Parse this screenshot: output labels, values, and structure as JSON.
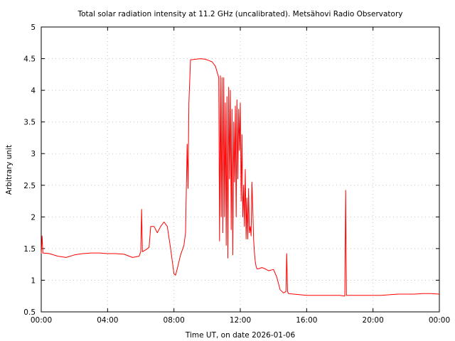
{
  "chart_data": {
    "type": "line",
    "title": "Total solar radiation intensity at 11.2 GHz (uncalibrated). Metsähovi Radio Observatory",
    "xlabel": "Time UT, on date 2026-01-06",
    "ylabel": "Arbitrary unit",
    "xlim": [
      0,
      24
    ],
    "ylim": [
      0.5,
      5
    ],
    "x_tick_values": [
      0,
      4,
      8,
      12,
      16,
      20,
      24
    ],
    "x_tick_labels": [
      "00:00",
      "04:00",
      "08:00",
      "12:00",
      "16:00",
      "20:00",
      "00:00"
    ],
    "y_tick_values": [
      0.5,
      1,
      1.5,
      2,
      2.5,
      3,
      3.5,
      4,
      4.5,
      5
    ],
    "y_tick_labels": [
      "0.5",
      "1",
      "1.5",
      "2",
      "2.5",
      "3",
      "3.5",
      "4",
      "4.5",
      "5"
    ],
    "grid": true,
    "series_color": "#ff0000",
    "series": [
      {
        "x": [
          0,
          0.05,
          0.1,
          0.5,
          1.0,
          1.5,
          2.0,
          2.5,
          3.0,
          3.5,
          4.0,
          4.5,
          5.0,
          5.5,
          5.9,
          6.0,
          6.05,
          6.1,
          6.3,
          6.5,
          6.6,
          6.8,
          7.0,
          7.2,
          7.4,
          7.6,
          7.8,
          8.0,
          8.1,
          8.2,
          8.4,
          8.6,
          8.7,
          8.75,
          8.8,
          8.85,
          8.9,
          9.0,
          9.3,
          9.6,
          9.9,
          10.1,
          10.3,
          10.5,
          10.7,
          10.75,
          10.8,
          10.85,
          10.9,
          10.95,
          11.0,
          11.05,
          11.1,
          11.15,
          11.2,
          11.25,
          11.3,
          11.35,
          11.4,
          11.45,
          11.5,
          11.55,
          11.6,
          11.65,
          11.7,
          11.75,
          11.8,
          11.85,
          11.9,
          11.95,
          12.0,
          12.05,
          12.1,
          12.15,
          12.2,
          12.25,
          12.3,
          12.35,
          12.4,
          12.45,
          12.5,
          12.55,
          12.6,
          12.65,
          12.7,
          12.75,
          12.8,
          12.85,
          12.9,
          12.95,
          13.0,
          13.1,
          13.3,
          13.5,
          13.7,
          14.0,
          14.2,
          14.4,
          14.6,
          14.75,
          14.8,
          14.85,
          14.9,
          15.2,
          15.6,
          16.0,
          17.0,
          18.0,
          18.3,
          18.35,
          18.4,
          19.0,
          20.0,
          20.5,
          21.0,
          21.5,
          22.0,
          22.5,
          23.0,
          23.5,
          24.0
        ],
        "y": [
          1.42,
          1.7,
          1.43,
          1.42,
          1.38,
          1.36,
          1.4,
          1.42,
          1.43,
          1.43,
          1.42,
          1.42,
          1.41,
          1.36,
          1.38,
          1.45,
          2.12,
          1.45,
          1.48,
          1.52,
          1.85,
          1.85,
          1.75,
          1.85,
          1.92,
          1.85,
          1.5,
          1.1,
          1.08,
          1.18,
          1.4,
          1.55,
          1.75,
          2.5,
          3.15,
          2.45,
          3.8,
          4.48,
          4.49,
          4.5,
          4.49,
          4.47,
          4.45,
          4.38,
          4.2,
          1.62,
          4.23,
          2.0,
          4.2,
          1.75,
          4.2,
          2.0,
          3.8,
          1.55,
          3.9,
          1.35,
          4.05,
          2.6,
          4.0,
          1.8,
          3.7,
          1.4,
          3.5,
          2.55,
          3.75,
          2.0,
          3.85,
          2.6,
          3.7,
          3.05,
          3.8,
          2.25,
          3.3,
          2.0,
          2.5,
          1.85,
          2.75,
          1.65,
          2.3,
          1.65,
          2.45,
          1.75,
          1.85,
          1.7,
          2.55,
          2.15,
          1.65,
          1.45,
          1.3,
          1.22,
          1.18,
          1.18,
          1.2,
          1.18,
          1.15,
          1.17,
          1.05,
          0.85,
          0.8,
          0.82,
          1.42,
          0.82,
          0.79,
          0.78,
          0.77,
          0.76,
          0.76,
          0.76,
          0.75,
          2.42,
          0.76,
          0.76,
          0.76,
          0.76,
          0.77,
          0.78,
          0.78,
          0.78,
          0.79,
          0.79,
          0.78
        ]
      }
    ]
  }
}
